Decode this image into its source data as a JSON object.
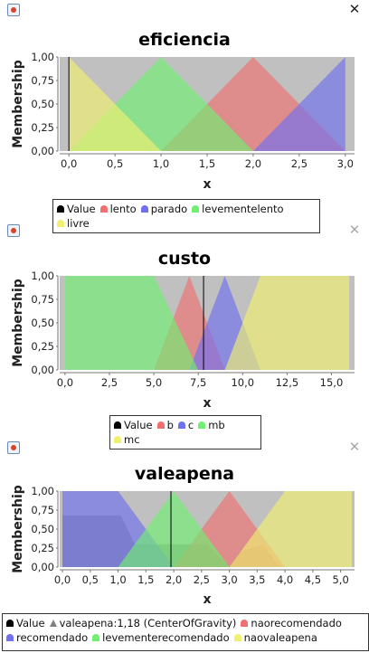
{
  "windows": [
    {
      "close_icon": "close-icon",
      "app_icon": "java-app-icon",
      "chart_data": {
        "type": "area",
        "title": "eficiencia",
        "xlabel": "x",
        "ylabel": "Membership",
        "xlim": [
          -0.1,
          3.1
        ],
        "ylim": [
          0,
          1
        ],
        "xticks": [
          "0,0",
          "0,5",
          "1,0",
          "1,5",
          "2,0",
          "2,5",
          "3,0"
        ],
        "yticks": [
          "0,00",
          "0,25",
          "0,50",
          "0,75",
          "1,00"
        ],
        "value_line_x": 0,
        "series": [
          {
            "name": "lento",
            "color": "#f07070",
            "points": [
              [
                1,
                0
              ],
              [
                2,
                1
              ],
              [
                3,
                0
              ]
            ]
          },
          {
            "name": "parado",
            "color": "#7070f0",
            "points": [
              [
                2,
                0
              ],
              [
                3,
                1
              ],
              [
                3,
                0
              ]
            ]
          },
          {
            "name": "levementelento",
            "color": "#70f070",
            "points": [
              [
                0,
                0
              ],
              [
                1,
                1
              ],
              [
                2,
                0
              ]
            ]
          },
          {
            "name": "livre",
            "color": "#f0f070",
            "points": [
              [
                0,
                0
              ],
              [
                0,
                1
              ],
              [
                1,
                0
              ]
            ]
          }
        ],
        "legend": [
          {
            "label": "Value",
            "color": "#000000",
            "shape": "bell"
          },
          {
            "label": "lento",
            "color": "#f07070",
            "shape": "bell"
          },
          {
            "label": "parado",
            "color": "#7070f0",
            "shape": "bell"
          },
          {
            "label": "levementelento",
            "color": "#70f070",
            "shape": "bell"
          },
          {
            "label": "livre",
            "color": "#f0f070",
            "shape": "bell"
          }
        ]
      }
    },
    {
      "close_icon": "close-icon",
      "app_icon": "java-app-icon",
      "chart_data": {
        "type": "area",
        "title": "custo",
        "xlabel": "x",
        "ylabel": "Membership",
        "xlim": [
          -0.3,
          16.3
        ],
        "ylim": [
          0,
          1
        ],
        "xticks": [
          "0,0",
          "2,5",
          "5,0",
          "7,5",
          "10,0",
          "12,5",
          "15,0"
        ],
        "yticks": [
          "0,00",
          "0,25",
          "0,50",
          "0,75",
          "1,00"
        ],
        "value_line_x": 7.8,
        "series": [
          {
            "name": "b",
            "color": "#f07070",
            "points": [
              [
                5,
                0
              ],
              [
                7,
                1
              ],
              [
                9,
                0
              ]
            ]
          },
          {
            "name": "c",
            "color": "#7070f0",
            "points": [
              [
                7,
                0
              ],
              [
                9,
                1
              ],
              [
                11,
                0
              ]
            ]
          },
          {
            "name": "mb",
            "color": "#70f070",
            "points": [
              [
                0,
                0
              ],
              [
                0,
                1
              ],
              [
                5,
                1
              ],
              [
                7.5,
                0
              ]
            ]
          },
          {
            "name": "mc",
            "color": "#f0f070",
            "points": [
              [
                9,
                0
              ],
              [
                11,
                1
              ],
              [
                16,
                1
              ],
              [
                16,
                0
              ]
            ]
          }
        ],
        "legend": [
          {
            "label": "Value",
            "color": "#000000",
            "shape": "bell"
          },
          {
            "label": "b",
            "color": "#f07070",
            "shape": "bell"
          },
          {
            "label": "c",
            "color": "#7070f0",
            "shape": "bell"
          },
          {
            "label": "mb",
            "color": "#70f070",
            "shape": "bell"
          },
          {
            "label": "mc",
            "color": "#f0f070",
            "shape": "bell"
          }
        ]
      }
    },
    {
      "close_icon": "close-icon",
      "app_icon": "java-app-icon",
      "chart_data": {
        "type": "area",
        "title": "valeapena",
        "xlabel": "x",
        "ylabel": "Membership",
        "xlim": [
          -0.05,
          5.25
        ],
        "ylim": [
          0,
          1
        ],
        "xticks": [
          "0,0",
          "0,5",
          "1,0",
          "1,5",
          "2,0",
          "2,5",
          "3,0",
          "3,5",
          "4,0",
          "4,5",
          "5,0"
        ],
        "yticks": [
          "0,00",
          "0,25",
          "0,50",
          "0,75",
          "1,00"
        ],
        "value_line_x": 1.95,
        "series": [
          {
            "name": "valeapena:1,18 (CenterOfGravity)",
            "color": "#808080",
            "points": [
              [
                0,
                0
              ],
              [
                0,
                0.68
              ],
              [
                1.05,
                0.68
              ],
              [
                1.3,
                0.3
              ],
              [
                1.5,
                0.3
              ],
              [
                2.6,
                0.3
              ],
              [
                3,
                0
              ],
              [
                3.2,
                0.2
              ],
              [
                3.6,
                0.3
              ],
              [
                3.9,
                0
              ]
            ]
          },
          {
            "name": "naorecomendado",
            "color": "#f07070",
            "points": [
              [
                2,
                0
              ],
              [
                3,
                1
              ],
              [
                4,
                0
              ]
            ]
          },
          {
            "name": "recomendado",
            "color": "#7070f0",
            "points": [
              [
                0,
                0
              ],
              [
                0,
                1
              ],
              [
                1,
                1
              ],
              [
                2,
                0
              ]
            ]
          },
          {
            "name": "levementerecomendado",
            "color": "#70f070",
            "points": [
              [
                1,
                0
              ],
              [
                2,
                1
              ],
              [
                3,
                0
              ]
            ]
          },
          {
            "name": "naovaleapena",
            "color": "#f0f070",
            "points": [
              [
                3,
                0
              ],
              [
                4,
                1
              ],
              [
                5.2,
                1
              ],
              [
                5.2,
                0
              ]
            ]
          }
        ],
        "legend": [
          {
            "label": "Value",
            "color": "#000000",
            "shape": "bell"
          },
          {
            "label": "valeapena:1,18 (CenterOfGravity)",
            "color": "#808080",
            "shape": "tri"
          },
          {
            "label": "naorecomendado",
            "color": "#f07070",
            "shape": "bell"
          },
          {
            "label": "recomendado",
            "color": "#7070f0",
            "shape": "bell"
          },
          {
            "label": "levementerecomendado",
            "color": "#70f070",
            "shape": "bell"
          },
          {
            "label": "naovaleapena",
            "color": "#f0f070",
            "shape": "bell"
          }
        ]
      }
    }
  ]
}
